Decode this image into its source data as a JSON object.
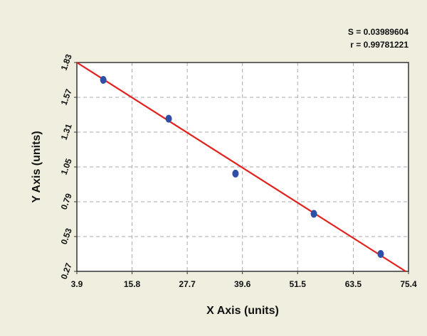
{
  "chart_data": {
    "type": "scatter",
    "annotations": [
      "S = 0.03989604",
      "r = 0.99781221"
    ],
    "xlabel": "X Axis (units)",
    "ylabel": "Y Axis (units)",
    "xlim": [
      3.9,
      75.4
    ],
    "xticks": [
      3.9,
      15.8,
      27.7,
      39.6,
      51.5,
      63.5,
      75.4
    ],
    "ylim": [
      0.27,
      1.83
    ],
    "yticks": [
      0.27,
      0.53,
      0.79,
      1.05,
      1.31,
      1.57,
      1.83
    ],
    "grid": true,
    "points": {
      "x": [
        9.6,
        23.7,
        38.1,
        55.0,
        69.4
      ],
      "y": [
        1.7,
        1.41,
        1.0,
        0.7,
        0.4
      ],
      "color": "#2f4fa6"
    },
    "fit_line": {
      "x": [
        3.9,
        74.8
      ],
      "y": [
        1.83,
        0.27
      ],
      "color": "#e3211c"
    }
  }
}
